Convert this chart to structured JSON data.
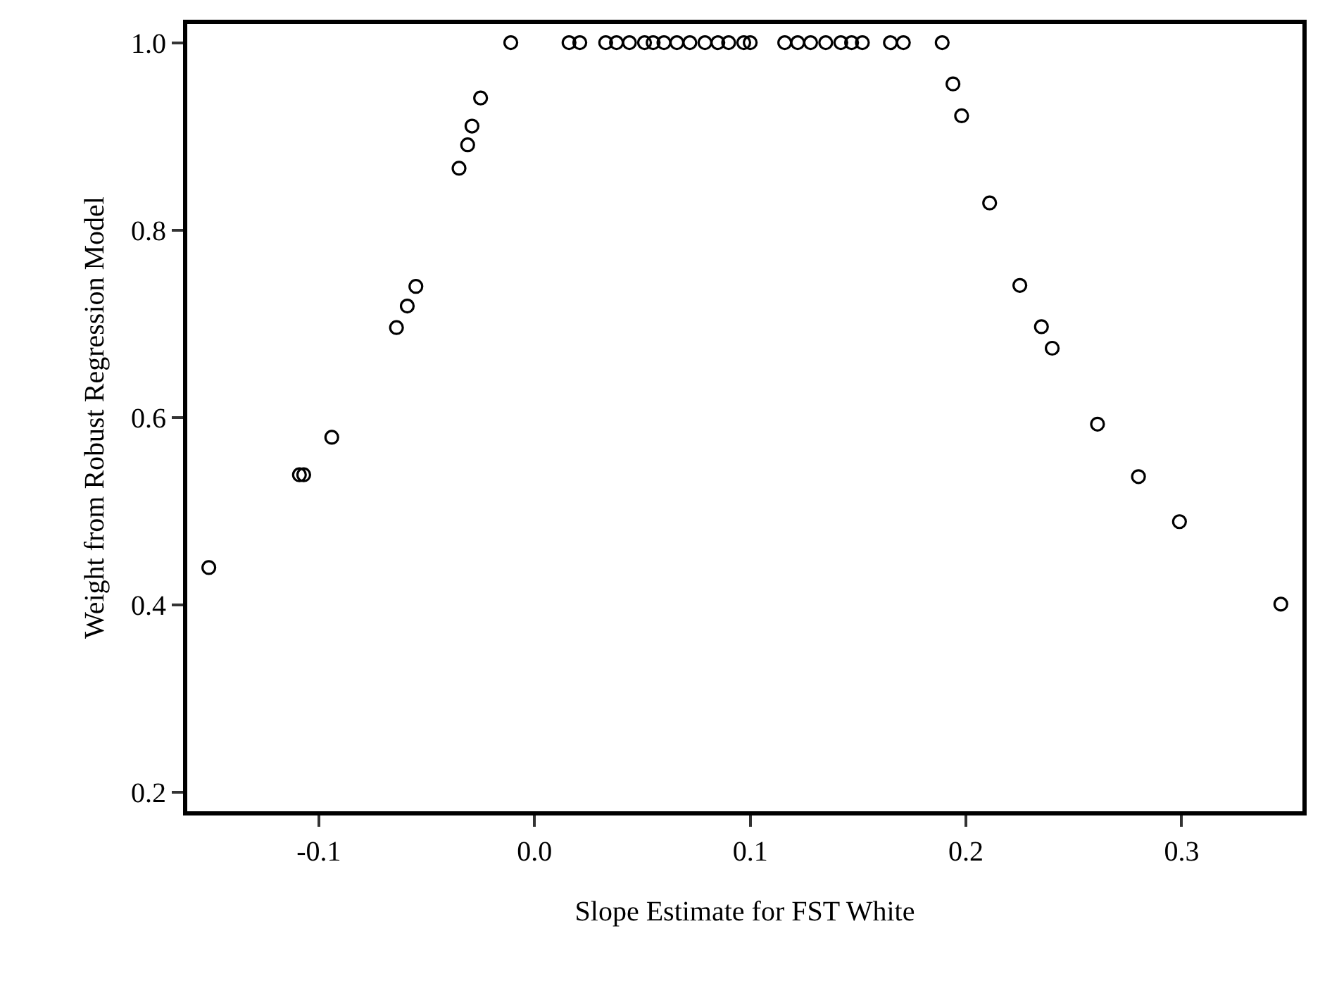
{
  "chart_data": {
    "type": "scatter",
    "xlabel": "Slope Estimate for FST White",
    "ylabel": "Weight from Robust Regression Model",
    "x": [
      -0.151,
      -0.109,
      -0.107,
      -0.094,
      -0.064,
      -0.059,
      -0.055,
      -0.035,
      -0.031,
      -0.029,
      -0.025,
      -0.011,
      0.016,
      0.021,
      0.033,
      0.038,
      0.044,
      0.051,
      0.055,
      0.06,
      0.066,
      0.072,
      0.079,
      0.085,
      0.09,
      0.097,
      0.1,
      0.116,
      0.122,
      0.128,
      0.135,
      0.142,
      0.147,
      0.152,
      0.165,
      0.171,
      0.189,
      0.194,
      0.198,
      0.211,
      0.225,
      0.235,
      0.24,
      0.261,
      0.28,
      0.299,
      0.346
    ],
    "values": [
      0.44,
      0.539,
      0.539,
      0.579,
      0.696,
      0.719,
      0.74,
      0.866,
      0.891,
      0.911,
      0.941,
      1.0,
      1.0,
      1.0,
      1.0,
      1.0,
      1.0,
      1.0,
      1.0,
      1.0,
      1.0,
      1.0,
      1.0,
      1.0,
      1.0,
      1.0,
      1.0,
      1.0,
      1.0,
      1.0,
      1.0,
      1.0,
      1.0,
      1.0,
      1.0,
      1.0,
      1.0,
      0.956,
      0.922,
      0.829,
      0.741,
      0.697,
      0.674,
      0.593,
      0.537,
      0.489,
      0.401
    ],
    "color": "#000000",
    "marker": "circle",
    "xlim": [
      -0.161,
      0.356
    ],
    "ylim": [
      0.18,
      1.02
    ],
    "xticks": [
      -0.1,
      {
        "value": 0,
        "label": "0.0"
      },
      0.1,
      0.2,
      0.3
    ],
    "yticks": [
      0.2,
      0.4,
      0.6,
      0.8,
      {
        "value": 1,
        "label": "1.0"
      }
    ],
    "grid": false
  }
}
